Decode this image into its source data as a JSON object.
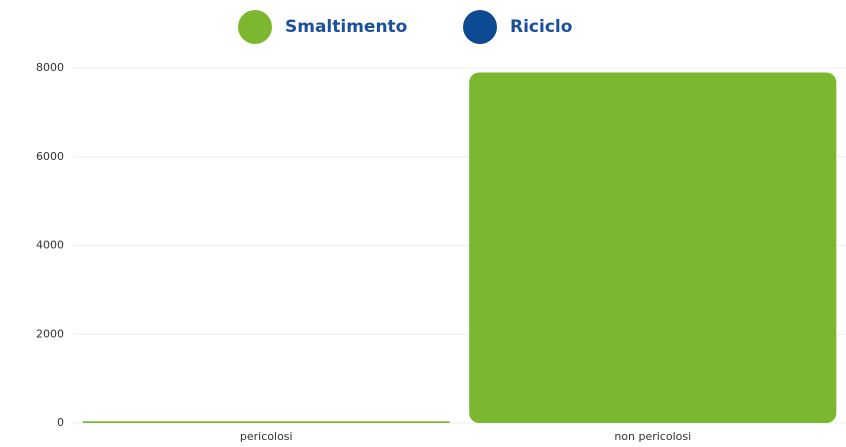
{
  "chart_data": {
    "type": "bar",
    "stacked": true,
    "categories": [
      "pericolosi",
      "non pericolosi"
    ],
    "series": [
      {
        "name": "Smaltimento",
        "color": "#7cb82f",
        "values": [
          40,
          7900
        ]
      },
      {
        "name": "Riciclo",
        "color": "#0d4a94",
        "values": [
          0,
          0
        ]
      }
    ],
    "ylim": [
      0,
      8000
    ],
    "yticks": [
      0,
      2000,
      4000,
      6000,
      8000
    ],
    "grid": true
  }
}
